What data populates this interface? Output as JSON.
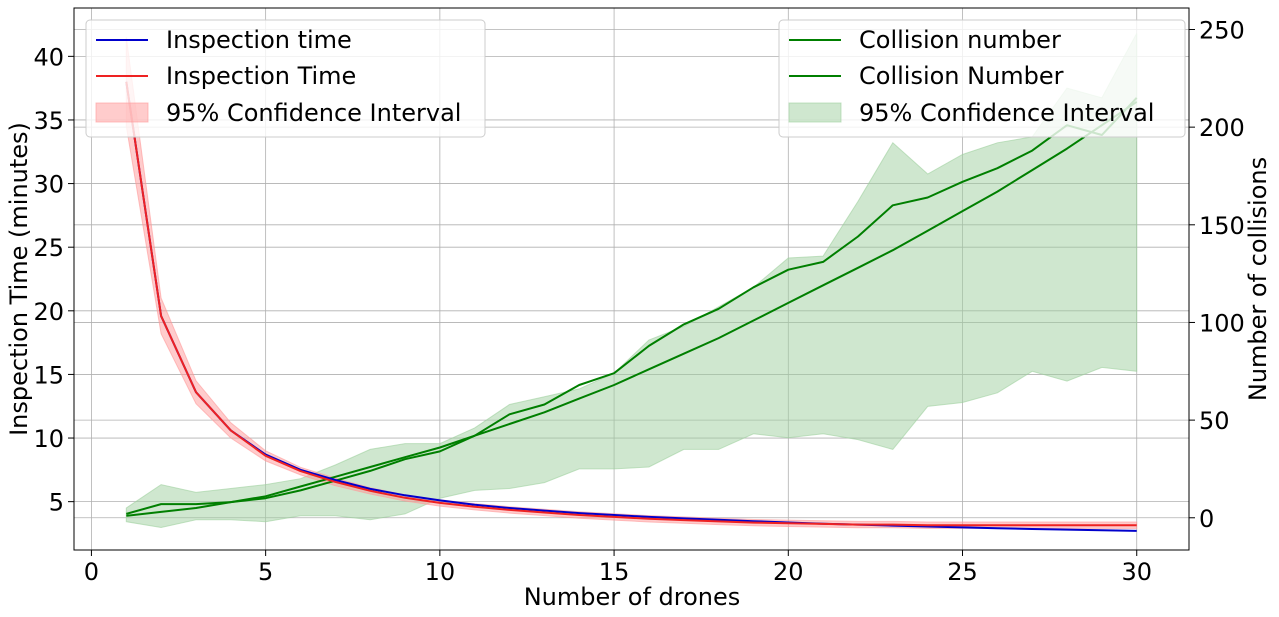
{
  "chart_data": {
    "type": "line",
    "title": "",
    "xlabel": "Number of drones",
    "ylabel_left": "Inspection Time (minutes)",
    "ylabel_right": "Number of collisions",
    "xlim": [
      -0.5,
      31.5
    ],
    "ylim_left": [
      1.2,
      43.8
    ],
    "ylim_right": [
      -16.5,
      261
    ],
    "xticks": [
      0,
      5,
      10,
      15,
      20,
      25,
      30
    ],
    "yticks_left": [
      5,
      10,
      15,
      20,
      25,
      30,
      35,
      40
    ],
    "yticks_right": [
      0,
      50,
      100,
      150,
      200,
      250
    ],
    "grid": true,
    "x": [
      1,
      2,
      3,
      4,
      5,
      6,
      7,
      8,
      9,
      10,
      11,
      12,
      13,
      14,
      15,
      16,
      17,
      18,
      19,
      20,
      21,
      22,
      23,
      24,
      25,
      26,
      27,
      28,
      29,
      30
    ],
    "left_series": [
      {
        "name": "Inspection time",
        "color": "#0000cc",
        "values": [
          38.0,
          19.6,
          13.6,
          10.6,
          8.7,
          7.5,
          6.7,
          6.0,
          5.5,
          5.1,
          4.75,
          4.5,
          4.3,
          4.1,
          3.95,
          3.8,
          3.68,
          3.57,
          3.46,
          3.36,
          3.27,
          3.2,
          3.12,
          3.05,
          2.98,
          2.91,
          2.85,
          2.8,
          2.75,
          2.7
        ]
      },
      {
        "name": "Inspection Time",
        "color": "#ee2222",
        "values": [
          38.0,
          19.6,
          13.6,
          10.6,
          8.6,
          7.4,
          6.55,
          5.85,
          5.3,
          4.9,
          4.6,
          4.35,
          4.15,
          3.95,
          3.8,
          3.65,
          3.55,
          3.45,
          3.35,
          3.3,
          3.25,
          3.2,
          3.2,
          3.15,
          3.15,
          3.15,
          3.15,
          3.15,
          3.15,
          3.15
        ],
        "ci_lower": [
          34.5,
          18.2,
          12.7,
          10.0,
          8.2,
          7.1,
          6.25,
          5.6,
          5.05,
          4.65,
          4.35,
          4.1,
          3.9,
          3.7,
          3.55,
          3.4,
          3.3,
          3.2,
          3.1,
          3.05,
          3.0,
          2.95,
          2.95,
          2.9,
          2.9,
          2.9,
          2.9,
          2.9,
          2.9,
          2.9
        ],
        "ci_upper": [
          41.5,
          21.0,
          14.5,
          11.2,
          9.0,
          7.7,
          6.85,
          6.1,
          5.55,
          5.15,
          4.85,
          4.6,
          4.4,
          4.2,
          4.05,
          3.9,
          3.8,
          3.7,
          3.6,
          3.55,
          3.5,
          3.45,
          3.45,
          3.4,
          3.4,
          3.4,
          3.4,
          3.4,
          3.4,
          3.4
        ]
      }
    ],
    "right_series": [
      {
        "name": "Collision number",
        "color": "#007f00",
        "values": [
          1,
          3,
          5,
          8,
          11,
          16,
          21,
          26,
          31,
          36,
          42,
          48,
          54,
          61,
          68,
          76,
          84,
          92,
          101,
          110,
          119,
          128,
          137,
          147,
          157,
          167,
          178,
          189,
          201,
          213
        ]
      },
      {
        "name": "Collision Number",
        "color": "#007f00",
        "values": [
          2,
          7,
          7,
          8,
          10,
          14,
          19,
          24,
          30,
          34,
          42,
          53,
          58,
          68,
          74,
          88,
          99,
          107,
          118,
          127,
          131,
          144,
          160,
          164,
          172,
          179,
          188,
          201,
          196,
          215
        ],
        "ci_lower": [
          -2,
          -5,
          -1,
          -1,
          -2,
          1,
          1,
          -1,
          2,
          10,
          14,
          15,
          18,
          25,
          25,
          26,
          35,
          35,
          43,
          41,
          43,
          40,
          35,
          57,
          59,
          64,
          75,
          70,
          77,
          75
        ],
        "ci_upper": [
          5,
          17,
          13,
          15,
          17,
          20,
          27,
          35,
          38,
          38,
          46,
          58,
          62,
          66,
          74,
          91,
          98,
          108,
          118,
          133,
          134,
          162,
          192,
          176,
          186,
          192,
          195,
          220,
          215,
          248
        ]
      }
    ],
    "legend_left": {
      "placement": "upper-left",
      "entries": [
        "Inspection time",
        "Inspection Time",
        "95% Confidence Interval"
      ]
    },
    "legend_right": {
      "placement": "upper-right",
      "entries": [
        "Collision number",
        "Collision Number",
        "95% Confidence Interval"
      ]
    },
    "ci_fill_left": "#ff9999",
    "ci_fill_right": "#9fd09f"
  }
}
